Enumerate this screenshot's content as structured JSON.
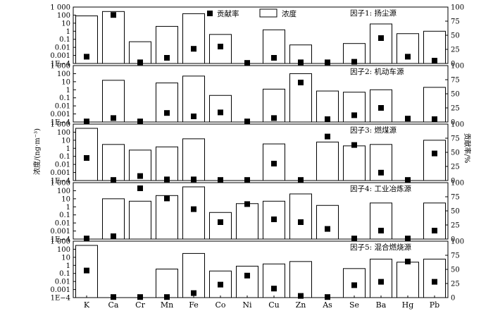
{
  "chart_data": {
    "type": "bar",
    "categories": [
      "K",
      "Ca",
      "Cr",
      "Mn",
      "Fe",
      "Co",
      "Ni",
      "Cu",
      "Zn",
      "As",
      "Se",
      "Ba",
      "Hg",
      "Pb"
    ],
    "ylabel_left": "浓度/(ng·m⁻³)",
    "ylabel_right": "贡献率/%",
    "left_axis": {
      "scale": "log",
      "range": [
        0.0001,
        1000
      ],
      "tick_labels": [
        "1E−4",
        "0.001",
        "0.01",
        "0.1",
        "1",
        "10",
        "100",
        "1 000"
      ]
    },
    "right_axis": {
      "scale": "linear",
      "range": [
        0,
        100
      ],
      "ticks": [
        0,
        25,
        50,
        75,
        100
      ]
    },
    "legend": {
      "position": "top",
      "marker_label": "贡献率",
      "bar_label": "浓度"
    },
    "panels": [
      {
        "label": "因子1: 扬尘源",
        "concentration": [
          80,
          280,
          0.05,
          4,
          150,
          0.4,
          null,
          1.5,
          0.02,
          null,
          0.03,
          8,
          0.5,
          1
        ],
        "contribution": [
          12,
          86,
          2,
          10,
          26,
          30,
          1,
          10,
          2,
          2,
          3,
          45,
          12,
          5
        ]
      },
      {
        "label": "因子2: 机动车源",
        "concentration": [
          null,
          15,
          null,
          7,
          50,
          0.2,
          null,
          1.2,
          100,
          0.7,
          0.5,
          1,
          null,
          2
        ],
        "contribution": [
          1,
          7,
          1,
          16,
          10,
          17,
          1,
          7,
          70,
          5,
          12,
          25,
          6,
          5
        ]
      },
      {
        "label": "因子3: 燃煤源",
        "concentration": [
          300,
          3,
          0.6,
          1.5,
          15,
          null,
          null,
          3.5,
          null,
          6,
          2,
          3,
          null,
          10
        ],
        "contribution": [
          40,
          1,
          8,
          2,
          2,
          1,
          1,
          30,
          1,
          78,
          63,
          14,
          1,
          48
        ]
      },
      {
        "label": "因子4: 工业冶炼源",
        "concentration": [
          null,
          10,
          5,
          25,
          300,
          0.2,
          2.5,
          5,
          40,
          1.5,
          null,
          3,
          null,
          3
        ],
        "contribution": [
          1,
          5,
          90,
          72,
          53,
          30,
          62,
          35,
          30,
          18,
          1,
          15,
          1,
          15
        ]
      },
      {
        "label": "因子5: 混合燃烧源",
        "concentration": [
          300,
          null,
          null,
          0.35,
          30,
          0.2,
          0.8,
          1.5,
          3,
          null,
          0.4,
          6,
          2.5,
          6
        ],
        "contribution": [
          48,
          1,
          1,
          1,
          8,
          23,
          39,
          16,
          3,
          1,
          22,
          28,
          64,
          28
        ]
      }
    ]
  }
}
